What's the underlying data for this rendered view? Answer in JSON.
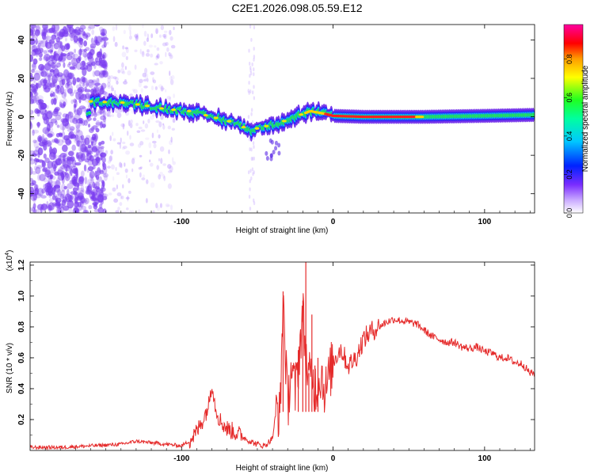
{
  "title": "C2E1.2026.098.05.59.E12",
  "colors": {
    "noise": "#7a3cf0",
    "track_edge": "#5a20d8",
    "snr_line": "#e52b2b"
  },
  "chart_data": [
    {
      "id": "spectrogram",
      "type": "heatmap",
      "xlabel": "Height of straight line (km)",
      "ylabel": "Frequency (Hz)",
      "xlim": [
        -200,
        133
      ],
      "ylim": [
        -50,
        48
      ],
      "xticks": [
        -100,
        0,
        100
      ],
      "xtick_labels": [
        "-100",
        "0",
        "100"
      ],
      "yticks": [
        -40,
        -20,
        0,
        20,
        40
      ],
      "ytick_labels": [
        "-40",
        "-20",
        "0",
        "20",
        "40"
      ],
      "track": [
        {
          "x": -160,
          "f": 8
        },
        {
          "x": -140,
          "f": 7.5
        },
        {
          "x": -125,
          "f": 6
        },
        {
          "x": -110,
          "f": 4
        },
        {
          "x": -95,
          "f": 3
        },
        {
          "x": -80,
          "f": 0
        },
        {
          "x": -65,
          "f": -3
        },
        {
          "x": -55,
          "f": -7
        },
        {
          "x": -45,
          "f": -5
        },
        {
          "x": -35,
          "f": -3
        },
        {
          "x": -25,
          "f": 0
        },
        {
          "x": -15,
          "f": 3
        },
        {
          "x": -5,
          "f": 1.5
        },
        {
          "x": 0,
          "f": 0.5
        },
        {
          "x": 20,
          "f": 0
        },
        {
          "x": 60,
          "f": 0
        },
        {
          "x": 100,
          "f": 0.5
        },
        {
          "x": 133,
          "f": 1
        }
      ],
      "colorbar": {
        "label": "Normalized spectral amplitude",
        "range": [
          0,
          0.98
        ],
        "ticks": [
          0.0,
          0.2,
          0.4,
          0.6,
          0.8
        ],
        "tick_labels": [
          "0.0",
          "0.2",
          "0.4",
          "0.6",
          "0.8"
        ]
      }
    },
    {
      "id": "snr",
      "type": "line",
      "xlabel": "Height of straight line (km)",
      "ylabel": "SNR (10 * v/v)",
      "scale_label": "(x10",
      "scale_exponent": "4",
      "scale_suffix": ")",
      "xlim": [
        -200,
        133
      ],
      "ylim": [
        0,
        1.22
      ],
      "xticks": [
        -100,
        0,
        100
      ],
      "xtick_labels": [
        "-100",
        "0",
        "100"
      ],
      "yticks": [
        0.2,
        0.4,
        0.6,
        0.8,
        1.0,
        1.2
      ],
      "ytick_labels": [
        "0.2",
        "0.4",
        "0.6",
        "0.8",
        "1.0",
        "1.2"
      ],
      "x": [
        -200,
        -180,
        -160,
        -140,
        -130,
        -120,
        -110,
        -100,
        -95,
        -90,
        -85,
        -82,
        -80,
        -78,
        -75,
        -70,
        -65,
        -60,
        -55,
        -50,
        -45,
        -40,
        -37,
        -35,
        -33,
        -30,
        -28,
        -25,
        -23,
        -20,
        -18,
        -16,
        -14,
        -12,
        -10,
        -8,
        -5,
        0,
        5,
        10,
        15,
        20,
        25,
        30,
        35,
        40,
        45,
        50,
        55,
        60,
        65,
        70,
        75,
        80,
        85,
        90,
        95,
        100,
        105,
        110,
        115,
        120,
        125,
        130,
        133
      ],
      "y": [
        0.02,
        0.02,
        0.03,
        0.04,
        0.06,
        0.05,
        0.04,
        0.03,
        0.06,
        0.12,
        0.22,
        0.3,
        0.45,
        0.3,
        0.2,
        0.14,
        0.12,
        0.09,
        0.06,
        0.04,
        0.03,
        0.08,
        0.3,
        0.2,
        1.03,
        0.25,
        0.55,
        0.38,
        0.55,
        0.9,
        0.6,
        0.45,
        0.5,
        0.4,
        0.45,
        0.5,
        0.38,
        0.58,
        0.66,
        0.55,
        0.6,
        0.72,
        0.77,
        0.8,
        0.83,
        0.85,
        0.84,
        0.83,
        0.82,
        0.78,
        0.74,
        0.72,
        0.7,
        0.7,
        0.67,
        0.66,
        0.67,
        0.64,
        0.63,
        0.6,
        0.6,
        0.57,
        0.56,
        0.5,
        0.5
      ],
      "spikes": [
        {
          "x": -33,
          "y": 1.03
        },
        {
          "x": -23,
          "y": 0.65
        },
        {
          "x": -20,
          "y": 0.97
        },
        {
          "x": -18,
          "y": 1.22
        },
        {
          "x": -16,
          "y": 0.5
        },
        {
          "x": -14,
          "y": 0.88
        },
        {
          "x": -12,
          "y": 0.55
        },
        {
          "x": -10,
          "y": 0.6
        }
      ]
    }
  ]
}
